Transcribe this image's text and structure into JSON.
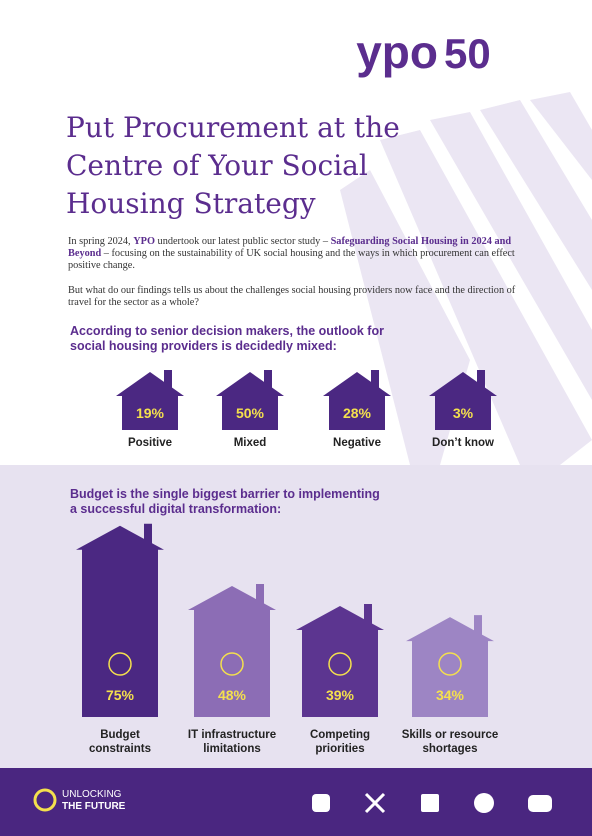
{
  "logo": {
    "brand": "ypo",
    "years": "50"
  },
  "title": [
    "Put Procurement at the",
    "Centre of Your Social",
    "Housing Strategy"
  ],
  "intro": [
    "In spring 2024, ",
    "YPO",
    " undertook our latest public sector study – ",
    "Safeguarding Social Housing in 2024 and Beyond",
    " – focusing on the sustainability of UK social housing and the ways in which procurement can effect positive change."
  ],
  "question": "But what do our findings tells us about the challenges social housing providers now face and the direction of travel for the sector as a whole?",
  "outlook": {
    "heading": [
      "According to senior decision makers, the outlook for",
      "social housing providers is decidedly mixed:"
    ],
    "categories": [
      "Positive",
      "Mixed",
      "Negative",
      "Don’t know"
    ],
    "value_labels": [
      "19%",
      "50%",
      "28%",
      "3%"
    ]
  },
  "chart_data": {
    "type": "bar",
    "title": [
      "Budget is the single biggest barrier to implementing",
      "a successful digital transformation:"
    ],
    "categories": [
      [
        "Budget",
        "constraints"
      ],
      [
        "IT infrastructure",
        "limitations"
      ],
      [
        "Competing",
        "priorities"
      ],
      [
        "Skills or resource",
        "shortages"
      ]
    ],
    "values": [
      75,
      48,
      39,
      34
    ],
    "value_labels": [
      "75%",
      "48%",
      "39%",
      "34%"
    ],
    "colors": [
      "#4b2882",
      "#8c6db5",
      "#5c3590",
      "#9d85c4"
    ]
  },
  "footer": {
    "tagline": [
      "UNLOCKING",
      "THE FUTURE"
    ]
  }
}
